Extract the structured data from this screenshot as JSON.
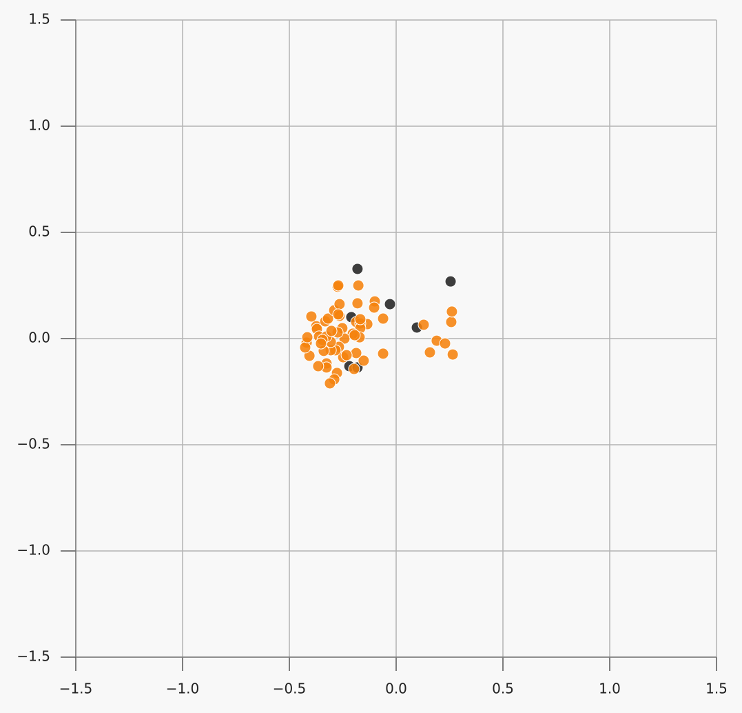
{
  "chart_data": {
    "type": "scatter",
    "xlim": [
      -1.5,
      1.5
    ],
    "ylim": [
      -1.5,
      1.5
    ],
    "xticks": [
      {
        "value": -1.5,
        "label": "−1.5"
      },
      {
        "value": -1.0,
        "label": "−1.0"
      },
      {
        "value": -0.5,
        "label": "−0.5"
      },
      {
        "value": 0,
        "label": "0.0"
      },
      0.5,
      {
        "value": 1.0,
        "label": "1.0"
      },
      1.5
    ],
    "yticks": [
      {
        "value": -1.5,
        "label": "−1.5"
      },
      {
        "value": -1.0,
        "label": "−1.0"
      },
      {
        "value": -0.5,
        "label": "−0.5"
      },
      {
        "value": 0,
        "label": "0.0"
      },
      0.5,
      {
        "value": 1.0,
        "label": "1.0"
      },
      1.5
    ],
    "grid": true,
    "series": [
      {
        "color": "#222222",
        "x": [
          -0.181,
          -0.029,
          0.255,
          -0.21,
          0.097,
          -0.219,
          -0.181
        ],
        "values": [
          0.328,
          0.162,
          0.269,
          0.101,
          0.052,
          -0.13,
          -0.136
        ]
      },
      {
        "color": "#f5820d",
        "x": [
          -0.274,
          -0.271,
          -0.177,
          -0.181,
          -0.1,
          -0.103,
          -0.135,
          -0.061,
          -0.187,
          -0.168,
          -0.168,
          -0.171,
          -0.203,
          -0.061,
          -0.152,
          -0.187,
          -0.197,
          -0.248,
          -0.277,
          -0.29,
          -0.31,
          -0.326,
          -0.326,
          -0.365,
          -0.406,
          -0.419,
          -0.426,
          -0.416,
          -0.397,
          -0.374,
          -0.371,
          -0.361,
          -0.332,
          -0.319,
          -0.29,
          -0.265,
          -0.265,
          -0.271,
          -0.252,
          -0.242,
          -0.268,
          -0.284,
          -0.306,
          -0.306,
          -0.326,
          -0.345,
          -0.232,
          -0.194,
          -0.168,
          0.129,
          0.19,
          0.229,
          0.158,
          0.265,
          0.258,
          0.261,
          -0.339,
          -0.352,
          -0.274,
          -0.303
        ],
        "values": [
          0.244,
          0.25,
          0.25,
          0.166,
          0.175,
          0.146,
          0.068,
          0.094,
          0.078,
          0.071,
          0.049,
          0.006,
          0.023,
          -0.071,
          -0.104,
          -0.068,
          -0.143,
          -0.088,
          -0.162,
          -0.192,
          -0.211,
          -0.117,
          -0.136,
          -0.13,
          -0.081,
          -0.019,
          -0.042,
          0.006,
          0.104,
          0.058,
          0.045,
          0.01,
          0.081,
          0.094,
          0.133,
          0.162,
          0.107,
          0.114,
          0.049,
          0,
          -0.039,
          -0.055,
          -0.055,
          -0.016,
          0.01,
          -0.006,
          -0.078,
          0.016,
          0.091,
          0.065,
          -0.01,
          -0.023,
          -0.065,
          -0.075,
          0.078,
          0.127,
          -0.058,
          -0.023,
          0.029,
          0.036
        ]
      }
    ]
  }
}
